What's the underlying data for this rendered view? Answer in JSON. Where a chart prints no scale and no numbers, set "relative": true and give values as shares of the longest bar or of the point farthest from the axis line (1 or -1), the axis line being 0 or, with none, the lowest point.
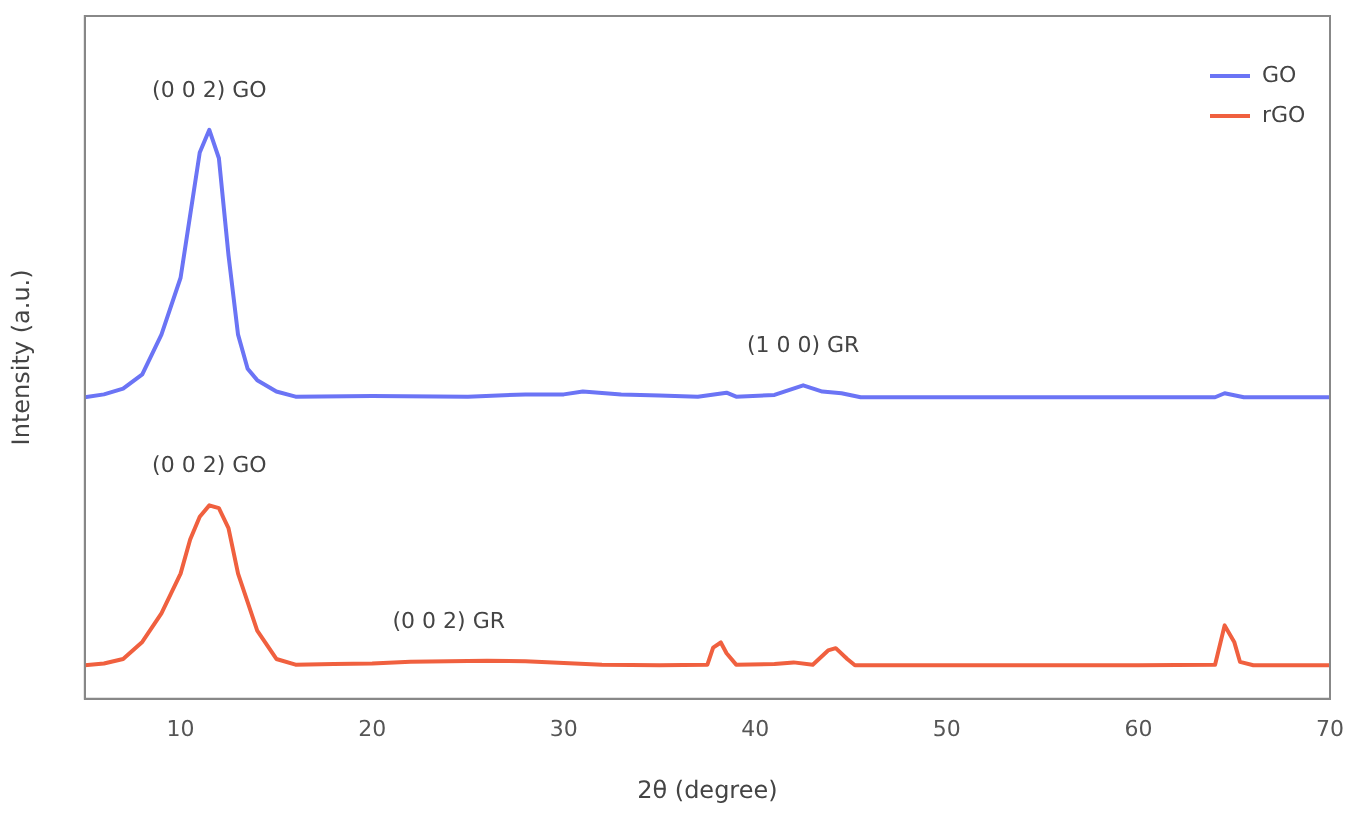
{
  "chart_data": {
    "type": "line",
    "xlabel": "2θ (degree)",
    "ylabel": "Intensity (a.u.)",
    "relative": true,
    "xlim": [
      5,
      70
    ],
    "xticks": [
      10,
      20,
      30,
      40,
      50,
      60,
      70
    ],
    "grid": false,
    "legend": "top right",
    "marker": "none",
    "line_style": "solid",
    "annotations": [
      {
        "text": "(0 0 2) GO",
        "x": 11.5,
        "y": 1
      },
      {
        "text": "(1 0 0) GR",
        "x": 42.5,
        "y": 0.551
      },
      {
        "text": "(0 0 2) GO",
        "x": 11.5,
        "y": 0.34
      },
      {
        "text": "(0 0 2) GR",
        "x": 24,
        "y": 0.066
      }
    ],
    "series": [
      {
        "name": "GO",
        "color": "#6b74f5",
        "x": [
          5,
          6,
          7,
          8,
          9,
          10,
          10.5,
          11,
          11.5,
          12,
          12.5,
          13,
          13.5,
          14,
          15,
          16,
          20,
          25,
          28,
          30,
          31,
          33,
          35,
          37,
          38.5,
          39,
          41,
          42.5,
          43.5,
          44.5,
          45.5,
          50,
          55,
          60,
          64,
          64.5,
          65.5,
          70
        ],
        "values": [
          0.53,
          0.535,
          0.545,
          0.57,
          0.64,
          0.74,
          0.85,
          0.96,
          1,
          0.95,
          0.78,
          0.64,
          0.58,
          0.56,
          0.54,
          0.531,
          0.532,
          0.531,
          0.535,
          0.535,
          0.54,
          0.535,
          0.533,
          0.531,
          0.538,
          0.531,
          0.534,
          0.551,
          0.54,
          0.537,
          0.53,
          0.53,
          0.53,
          0.53,
          0.53,
          0.537,
          0.53,
          0.53
        ]
      },
      {
        "name": "rGO",
        "color": "#f0603f",
        "x": [
          5,
          6,
          7,
          8,
          9,
          10,
          10.5,
          11,
          11.5,
          12,
          12.5,
          13,
          14,
          15,
          16,
          18,
          20,
          22,
          24,
          26,
          28,
          30,
          32,
          35,
          37.5,
          37.8,
          38.2,
          38.5,
          39,
          41,
          42,
          43,
          43.8,
          44.2,
          44.8,
          45.2,
          50,
          55,
          60,
          64,
          64.5,
          65,
          65.3,
          66,
          70
        ],
        "values": [
          0.059,
          0.062,
          0.07,
          0.1,
          0.15,
          0.22,
          0.28,
          0.32,
          0.34,
          0.335,
          0.3,
          0.22,
          0.12,
          0.07,
          0.06,
          0.061,
          0.062,
          0.065,
          0.066,
          0.067,
          0.066,
          0.063,
          0.06,
          0.059,
          0.06,
          0.09,
          0.099,
          0.08,
          0.06,
          0.061,
          0.064,
          0.06,
          0.085,
          0.089,
          0.07,
          0.059,
          0.059,
          0.059,
          0.059,
          0.06,
          0.129,
          0.1,
          0.065,
          0.059,
          0.059
        ]
      }
    ]
  }
}
